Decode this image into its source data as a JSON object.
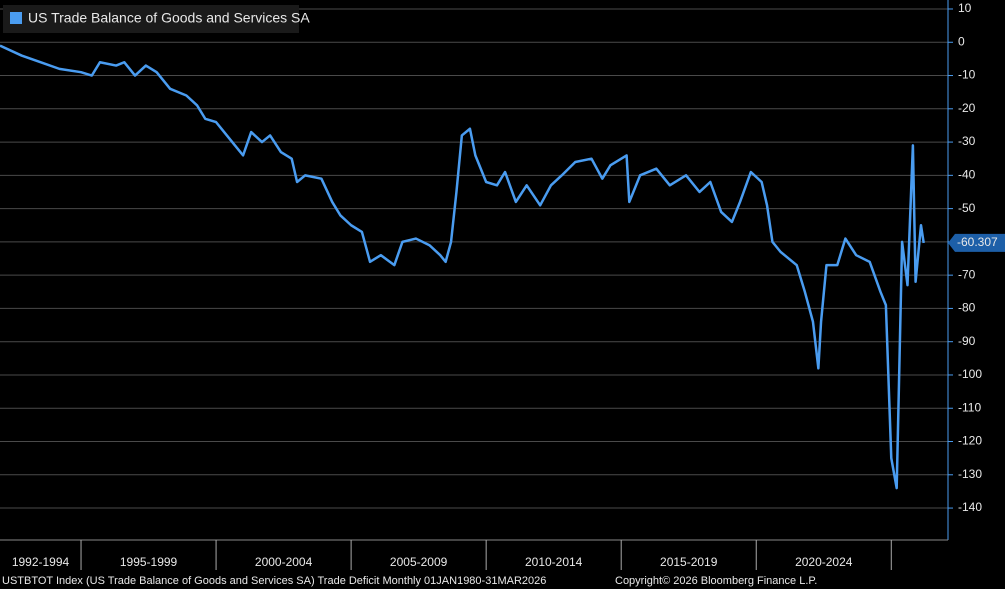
{
  "chart_data": {
    "type": "line",
    "x": [
      1992.0,
      1992.8,
      1993.5,
      1994.2,
      1995.0,
      1995.4,
      1995.7,
      1996.3,
      1996.6,
      1997.0,
      1997.4,
      1997.8,
      1998.3,
      1998.9,
      1999.3,
      1999.6,
      2000.0,
      2000.4,
      2000.7,
      2001.0,
      2001.3,
      2001.7,
      2002.0,
      2002.4,
      2002.8,
      2003.0,
      2003.3,
      2003.9,
      2004.3,
      2004.6,
      2005.0,
      2005.4,
      2005.7,
      2006.1,
      2006.6,
      2006.9,
      2007.4,
      2007.9,
      2008.3,
      2008.5,
      2008.7,
      2008.9,
      2009.1,
      2009.4,
      2009.6,
      2010.0,
      2010.4,
      2010.7,
      2011.1,
      2011.5,
      2012.0,
      2012.4,
      2012.8,
      2013.3,
      2013.9,
      2014.3,
      2014.6,
      2015.2,
      2015.3,
      2015.7,
      2016.3,
      2016.8,
      2017.4,
      2017.9,
      2018.3,
      2018.7,
      2019.1,
      2019.4,
      2019.8,
      2020.2,
      2020.4,
      2020.6,
      2020.9,
      2021.5,
      2021.8,
      2022.1,
      2022.3,
      2022.4,
      2022.6,
      2023.0,
      2023.3,
      2023.7,
      2024.2,
      2024.6,
      2024.8,
      2025.0,
      2025.2,
      2025.4,
      2025.6,
      2025.8,
      2025.9,
      2026.1,
      2026.2
    ],
    "series": [
      {
        "name": "US Trade Balance of Goods and Services SA",
        "color": "#4a9cf0",
        "values": [
          -1,
          -4,
          -6,
          -8,
          -9,
          -10,
          -6,
          -7,
          -6,
          -10,
          -7,
          -9,
          -14,
          -16,
          -19,
          -23,
          -24,
          -28,
          -31,
          -34,
          -27,
          -30,
          -28,
          -33,
          -35,
          -42,
          -40,
          -41,
          -48,
          -52,
          -55,
          -57,
          -66,
          -64,
          -67,
          -60,
          -59,
          -61,
          -64,
          -66,
          -60,
          -45,
          -28,
          -26,
          -34,
          -42,
          -43,
          -39,
          -48,
          -43,
          -49,
          -43,
          -40,
          -36,
          -35,
          -41,
          -37,
          -34,
          -48,
          -40,
          -38,
          -43,
          -40,
          -45,
          -42,
          -51,
          -54,
          -48,
          -39,
          -42,
          -49,
          -60,
          -63,
          -67,
          -75,
          -84,
          -98,
          -84,
          -67,
          -67,
          -59,
          -64,
          -66,
          -75,
          -79,
          -125,
          -134,
          -60,
          -73,
          -31,
          -72,
          -55,
          -60.307
        ]
      }
    ],
    "xlim": [
      1992,
      2027.1
    ],
    "xticks": [
      1995,
      2000,
      2005,
      2010,
      2015,
      2020,
      2025
    ],
    "xtick_labels": [
      "1992-1994",
      "1995-1999",
      "2000-2004",
      "2005-2009",
      "2010-2014",
      "2015-2019",
      "2020-2024"
    ],
    "ylim": [
      -149.6,
      12.7
    ],
    "yticks": [
      10,
      0,
      -10,
      -20,
      -30,
      -40,
      -50,
      -60,
      -70,
      -80,
      -90,
      -100,
      -110,
      -120,
      -130,
      -140
    ],
    "grid": true,
    "legend": "top-left",
    "footer": "USTBTOT Index (US Trade Balance of Goods and Services SA) Trade Deficit Monthly 01JAN1980-31MAR2026",
    "copyright": "Copyright© 2026 Bloomberg Finance L.P."
  }
}
